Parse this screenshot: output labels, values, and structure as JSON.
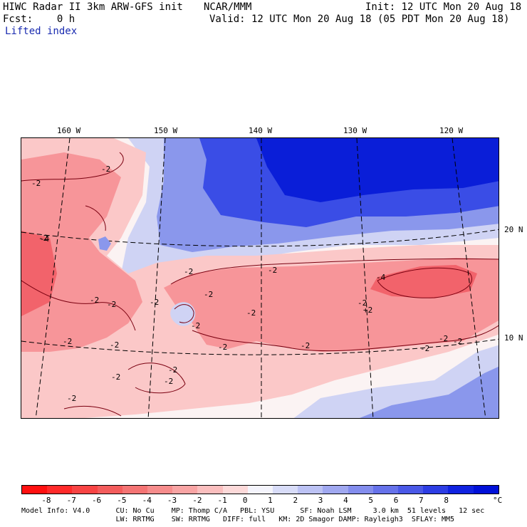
{
  "header": {
    "title_left": "HIWC Radar II 3km ARW-GFS init",
    "org": "NCAR/MMM",
    "init": "Init: 12 UTC Mon 20 Aug 18",
    "fcst": "Fcst:    0 h",
    "valid": "Valid: 12 UTC Mon 20 Aug 18 (05 PDT Mon 20 Aug 18)",
    "field": "Lifted index"
  },
  "map": {
    "lon_labels": [
      "160 W",
      "150 W",
      "140 W",
      "130 W",
      "120 W"
    ],
    "lat_labels": [
      "20 N",
      "10 N"
    ],
    "contour_labels": [
      "-2",
      "-2",
      "-2",
      "-2",
      "-2",
      "-2",
      "-2",
      "-2",
      "-2",
      "-2",
      "-2",
      "-2",
      "-2",
      "-2",
      "-2",
      "-2",
      "-2",
      "-2",
      "-2",
      "-4",
      "-4",
      "-2",
      "+2",
      "-2",
      "-2",
      "-2"
    ],
    "colors": {
      "neg_strong": "#f2636b",
      "neg_mid": "#f79599",
      "neg_light": "#fbc8c8",
      "near_zero": "#fbf3f3",
      "pos_light": "#cfd3f4",
      "pos_mid": "#8a97ec",
      "pos_strong": "#3a4de6",
      "pos_max": "#0a1ed8"
    }
  },
  "colorbar": {
    "labels": [
      "-8",
      "-7",
      "-6",
      "-5",
      "-4",
      "-3",
      "-2",
      "-1",
      "0",
      "1",
      "2",
      "3",
      "4",
      "5",
      "6",
      "7",
      "8",
      "°C"
    ],
    "colors": [
      "#ff1010",
      "#ff2a2a",
      "#f84444",
      "#f35c5c",
      "#f47474",
      "#f68c8c",
      "#f8a4a4",
      "#fabebe",
      "#fcd9d9",
      "#f4f4fc",
      "#d8dcf8",
      "#bcc2f4",
      "#a0a8f0",
      "#838ded",
      "#6672ea",
      "#4a58e7",
      "#2d3de4",
      "#1022e0",
      "#0010d8"
    ]
  },
  "footer": {
    "line1": "Model Info: V4.0      CU: No Cu    MP: Thomp C/A   PBL: YSU      SF: Noah LSM     3.0 km  51 levels   12 sec",
    "line2": "                      LW: RRTMG    SW: RRTMG   DIFF: full   KM: 2D Smagor DAMP: Rayleigh3  SFLAY: MM5"
  }
}
